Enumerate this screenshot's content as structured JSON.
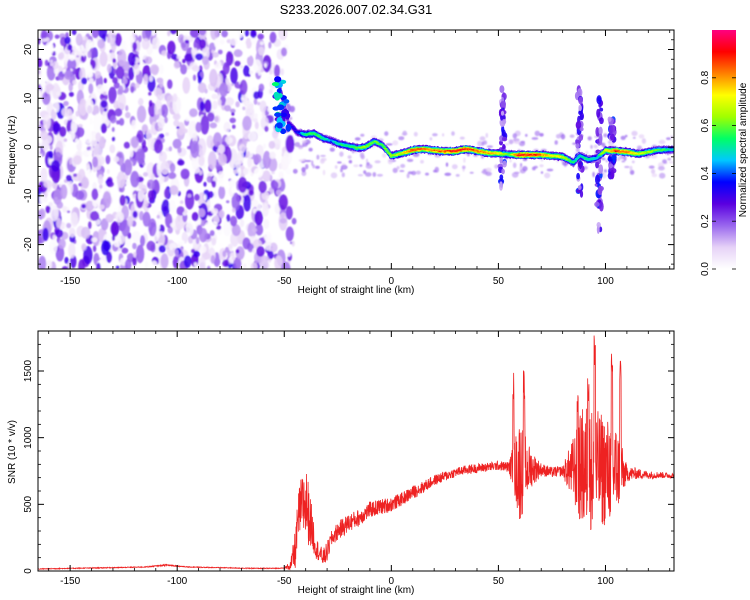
{
  "title": "S233.2026.007.02.34.G31",
  "chart_data": [
    {
      "type": "heatmap",
      "xlabel": "Height of straight line (km)",
      "ylabel": "Frequency (Hz)",
      "xlim": [
        -165,
        132
      ],
      "ylim": [
        -25,
        24
      ],
      "xticks": [
        -150,
        -100,
        -50,
        0,
        50,
        100
      ],
      "yticks": [
        -20,
        -10,
        0,
        10,
        20
      ],
      "colorbar": {
        "label": "Normalized spectral amplitude",
        "range": [
          0,
          1
        ],
        "ticks": [
          "0.0",
          "0.2",
          "0.4",
          "0.6",
          "0.8"
        ],
        "colors": [
          "#ffffff",
          "#e6d2f7",
          "#9966ee",
          "#5a00e0",
          "#0000ff",
          "#00c8ff",
          "#00ff66",
          "#a0ff00",
          "#ffff00",
          "#ff8000",
          "#ff0000",
          "#ff0080"
        ]
      },
      "ridge": {
        "x": [
          -52,
          -48,
          -44,
          -40,
          -36,
          -32,
          -28,
          -24,
          -20,
          -16,
          -12,
          -8,
          -4,
          0,
          5,
          10,
          15,
          20,
          25,
          30,
          35,
          40,
          45,
          50,
          55,
          60,
          65,
          70,
          75,
          80,
          85,
          88,
          92,
          96,
          100,
          105,
          110,
          115,
          120,
          125,
          132
        ],
        "y": [
          12,
          5,
          3,
          2.6,
          2.8,
          1.8,
          1.3,
          0.6,
          0.2,
          -0.2,
          0,
          1.2,
          0.3,
          -1.8,
          -1.3,
          -0.6,
          -0.4,
          -0.7,
          -0.9,
          -0.8,
          -0.4,
          -0.8,
          -1.2,
          -1.3,
          -1.5,
          -1.6,
          -1.6,
          -1.6,
          -1.8,
          -2.0,
          -3.2,
          -1.8,
          -2.6,
          -2.2,
          -0.7,
          -0.8,
          -1.0,
          -1.4,
          -1.0,
          -0.6,
          -0.5
        ],
        "amplitude": [
          0.35,
          0.38,
          0.45,
          0.55,
          0.6,
          0.55,
          0.45,
          0.55,
          0.55,
          0.6,
          0.65,
          0.6,
          0.6,
          0.65,
          0.7,
          0.9,
          0.8,
          0.85,
          0.85,
          0.95,
          0.9,
          0.85,
          0.8,
          0.75,
          0.6,
          0.95,
          0.9,
          0.85,
          0.75,
          0.7,
          0.55,
          0.5,
          0.55,
          0.5,
          0.7,
          0.9,
          0.85,
          0.7,
          0.65,
          0.6,
          0.5
        ],
        "vertical_streaks": [
          {
            "x": 52,
            "ymin": -8,
            "ymax": 12
          },
          {
            "x": 88,
            "ymin": -10,
            "ymax": 12
          },
          {
            "x": 97,
            "ymin": -17,
            "ymax": 10
          },
          {
            "x": 103,
            "ymin": -6,
            "ymax": 6
          }
        ]
      }
    },
    {
      "type": "line",
      "xlabel": "Height of straight line (km)",
      "ylabel": "SNR (10 * v/v)",
      "xlim": [
        -165,
        132
      ],
      "ylim": [
        0,
        1800
      ],
      "xticks": [
        -150,
        -100,
        -50,
        0,
        50,
        100
      ],
      "yticks": [
        0,
        500,
        1000,
        1500
      ],
      "color": "#ee2222",
      "series": [
        {
          "x": [
            -165,
            -150,
            -130,
            -115,
            -105,
            -95,
            -80,
            -65,
            -55,
            -50,
            -47,
            -45,
            -43,
            -40,
            -38,
            -35,
            -32,
            -30,
            -28,
            -25,
            -20,
            -15,
            -10,
            -5,
            0,
            5,
            10,
            15,
            20,
            25,
            30,
            35,
            40,
            45,
            50,
            55,
            60,
            65,
            70,
            75,
            80,
            85,
            90,
            95,
            100,
            105,
            110,
            115,
            120,
            125,
            132
          ],
          "y": [
            15,
            20,
            25,
            30,
            45,
            30,
            25,
            20,
            20,
            22,
            40,
            150,
            450,
            520,
            380,
            170,
            100,
            140,
            240,
            300,
            360,
            400,
            460,
            480,
            500,
            540,
            590,
            630,
            680,
            710,
            740,
            760,
            770,
            780,
            790,
            780,
            760,
            770,
            760,
            740,
            750,
            760,
            770,
            770,
            750,
            760,
            730,
            730,
            720,
            720,
            715
          ],
          "noise_amplitude": [
            3,
            3,
            3,
            3,
            5,
            3,
            3,
            3,
            3,
            3,
            40,
            150,
            200,
            300,
            200,
            80,
            60,
            80,
            60,
            70,
            70,
            65,
            60,
            60,
            55,
            50,
            50,
            45,
            40,
            40,
            35,
            35,
            35,
            35,
            35,
            40,
            400,
            150,
            50,
            40,
            40,
            250,
            500,
            450,
            420,
            350,
            60,
            40,
            30,
            25,
            20
          ],
          "spikes": [
            {
              "x": 57,
              "y": 1500
            },
            {
              "x": 62,
              "y": 1510
            },
            {
              "x": 87,
              "y": 1370
            },
            {
              "x": 92,
              "y": 1470
            },
            {
              "x": 95,
              "y": 1790
            },
            {
              "x": 103,
              "y": 1650
            },
            {
              "x": 107,
              "y": 1620
            }
          ]
        }
      ]
    }
  ]
}
